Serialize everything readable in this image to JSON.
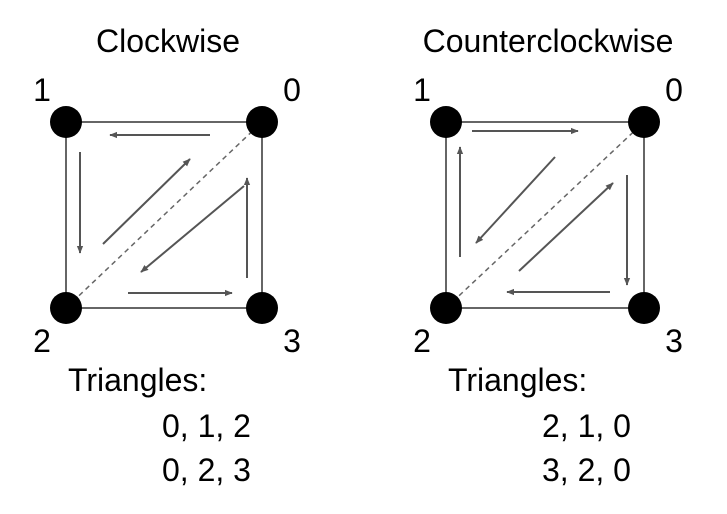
{
  "diagrams": [
    {
      "title": "Clockwise",
      "vertex_labels": [
        "0",
        "1",
        "2",
        "3"
      ],
      "triangles_heading": "Triangles:",
      "triangles": [
        "0, 1, 2",
        "0, 2, 3"
      ]
    },
    {
      "title": "Counterclockwise",
      "vertex_labels": [
        "0",
        "1",
        "2",
        "3"
      ],
      "triangles_heading": "Triangles:",
      "triangles": [
        "2, 1, 0",
        "3, 2, 0"
      ]
    }
  ],
  "colors": {
    "vertex": "#000000",
    "edge": "#666666",
    "arrow": "#555555",
    "text": "#000000"
  }
}
